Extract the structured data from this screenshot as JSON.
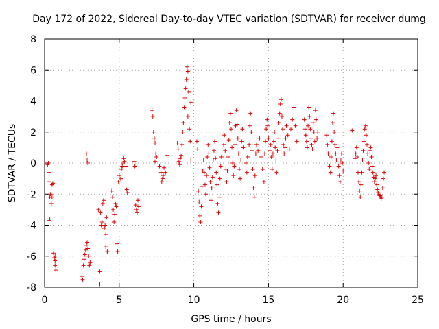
{
  "chart_data": {
    "type": "scatter",
    "title": "Day 172 of 2022, Sidereal Day-to-day VTEC variation (SDTVAR) for receiver dumg",
    "xlabel": "GPS time / hours",
    "ylabel": "SDTVAR / TECUs",
    "xlim": [
      0,
      25
    ],
    "ylim": [
      -8,
      8
    ],
    "xticks": [
      "0",
      "5",
      "10",
      "15",
      "20",
      "25"
    ],
    "yticks": [
      "-8",
      "-6",
      "-4",
      "-2",
      "0",
      "2",
      "4",
      "6",
      "8"
    ],
    "grid": true,
    "marker": "+",
    "color": "#e00000",
    "series": [
      {
        "name": "SDTVAR",
        "points": [
          [
            0.2,
            -0.1
          ],
          [
            0.25,
            0.0
          ],
          [
            0.3,
            -0.6
          ],
          [
            0.3,
            -1.2
          ],
          [
            0.35,
            -2.2
          ],
          [
            0.35,
            -3.6
          ],
          [
            0.3,
            -3.7
          ],
          [
            0.4,
            -2.0
          ],
          [
            0.45,
            -2.6
          ],
          [
            0.5,
            -1.4
          ],
          [
            0.5,
            -2.2
          ],
          [
            0.55,
            -1.3
          ],
          [
            0.6,
            -5.8
          ],
          [
            0.65,
            -6.1
          ],
          [
            0.7,
            -6.3
          ],
          [
            0.7,
            -6.6
          ],
          [
            0.75,
            -6.9
          ],
          [
            0.7,
            -6.0
          ],
          [
            2.5,
            -7.3
          ],
          [
            2.55,
            -7.5
          ],
          [
            2.6,
            -6.6
          ],
          [
            2.65,
            -6.2
          ],
          [
            2.7,
            -5.9
          ],
          [
            2.75,
            -5.6
          ],
          [
            2.8,
            -5.3
          ],
          [
            2.85,
            -5.1
          ],
          [
            2.9,
            -5.5
          ],
          [
            2.95,
            -6.0
          ],
          [
            2.8,
            0.6
          ],
          [
            2.85,
            0.2
          ],
          [
            2.9,
            0.0
          ],
          [
            3.0,
            -6.6
          ],
          [
            3.05,
            -6.4
          ],
          [
            3.6,
            -3.0
          ],
          [
            3.65,
            -3.6
          ],
          [
            3.7,
            -7.0
          ],
          [
            3.7,
            -7.8
          ],
          [
            3.75,
            -3.2
          ],
          [
            3.8,
            -4.0
          ],
          [
            3.85,
            -3.8
          ],
          [
            3.9,
            -2.6
          ],
          [
            3.95,
            -2.4
          ],
          [
            4.0,
            -4.2
          ],
          [
            4.05,
            -4.0
          ],
          [
            4.1,
            -5.4
          ],
          [
            4.1,
            -4.6
          ],
          [
            4.2,
            -5.7
          ],
          [
            4.15,
            -3.5
          ],
          [
            4.5,
            -1.8
          ],
          [
            4.55,
            -2.2
          ],
          [
            4.6,
            -3.0
          ],
          [
            4.65,
            -3.8
          ],
          [
            4.7,
            -3.3
          ],
          [
            4.75,
            -2.6
          ],
          [
            4.8,
            -2.8
          ],
          [
            4.85,
            -5.2
          ],
          [
            4.9,
            -5.7
          ],
          [
            4.95,
            -1.2
          ],
          [
            5.0,
            -0.8
          ],
          [
            5.1,
            -1.0
          ],
          [
            5.15,
            -0.4
          ],
          [
            5.2,
            -0.2
          ],
          [
            5.25,
            0.0
          ],
          [
            5.3,
            0.3
          ],
          [
            5.35,
            0.1
          ],
          [
            5.45,
            -0.2
          ],
          [
            5.5,
            -1.7
          ],
          [
            5.55,
            -1.9
          ],
          [
            6.0,
            0.1
          ],
          [
            6.05,
            -0.2
          ],
          [
            6.1,
            -2.7
          ],
          [
            6.15,
            -3.0
          ],
          [
            6.2,
            -3.2
          ],
          [
            6.25,
            -2.4
          ],
          [
            6.3,
            -2.8
          ],
          [
            7.2,
            3.4
          ],
          [
            7.25,
            3.0
          ],
          [
            7.3,
            2.0
          ],
          [
            7.35,
            1.6
          ],
          [
            7.4,
            1.3
          ],
          [
            7.45,
            0.6
          ],
          [
            7.5,
            0.4
          ],
          [
            7.4,
            0.1
          ],
          [
            7.7,
            -0.2
          ],
          [
            7.8,
            -0.6
          ],
          [
            7.85,
            -1.2
          ],
          [
            7.9,
            -1.0
          ],
          [
            7.95,
            -0.8
          ],
          [
            8.0,
            -0.3
          ],
          [
            8.1,
            -0.6
          ],
          [
            8.2,
            0.5
          ],
          [
            8.9,
            1.3
          ],
          [
            8.95,
            0.9
          ],
          [
            9.0,
            0.1
          ],
          [
            9.05,
            -0.1
          ],
          [
            9.1,
            0.3
          ],
          [
            9.15,
            0.5
          ],
          [
            9.2,
            1.2
          ],
          [
            9.25,
            2.0
          ],
          [
            9.3,
            2.6
          ],
          [
            9.35,
            3.6
          ],
          [
            9.4,
            4.2
          ],
          [
            9.45,
            4.8
          ],
          [
            9.5,
            5.4
          ],
          [
            9.55,
            6.2
          ],
          [
            9.6,
            5.9
          ],
          [
            9.65,
            4.6
          ],
          [
            9.6,
            3.0
          ],
          [
            9.7,
            2.2
          ],
          [
            9.75,
            1.4
          ],
          [
            9.8,
            0.2
          ],
          [
            9.8,
            3.9
          ],
          [
            10.2,
            1.4
          ],
          [
            10.25,
            0.9
          ],
          [
            10.3,
            -1.8
          ],
          [
            10.35,
            -2.5
          ],
          [
            10.4,
            -3.4
          ],
          [
            10.45,
            -3.8
          ],
          [
            10.5,
            -2.8
          ],
          [
            10.55,
            -1.5
          ],
          [
            10.6,
            -0.5
          ],
          [
            10.65,
            0.2
          ],
          [
            10.7,
            -0.6
          ],
          [
            10.75,
            -1.4
          ],
          [
            10.8,
            -2.0
          ],
          [
            10.85,
            -0.8
          ],
          [
            10.9,
            0.4
          ],
          [
            10.95,
            1.2
          ],
          [
            11.0,
            0.6
          ],
          [
            11.05,
            -0.3
          ],
          [
            11.1,
            -1.2
          ],
          [
            11.15,
            -2.4
          ],
          [
            11.2,
            -1.6
          ],
          [
            11.25,
            -0.9
          ],
          [
            11.3,
            0.2
          ],
          [
            11.35,
            0.8
          ],
          [
            11.4,
            1.4
          ],
          [
            11.45,
            0.3
          ],
          [
            11.5,
            -0.6
          ],
          [
            11.55,
            -1.4
          ],
          [
            11.6,
            -2.6
          ],
          [
            11.65,
            -3.2
          ],
          [
            11.7,
            -2.2
          ],
          [
            11.75,
            -1.0
          ],
          [
            11.8,
            -0.2
          ],
          [
            11.85,
            0.4
          ],
          [
            12.0,
            1.2
          ],
          [
            12.05,
            1.8
          ],
          [
            12.1,
            0.8
          ],
          [
            12.15,
            -0.4
          ],
          [
            12.2,
            -1.2
          ],
          [
            12.25,
            -0.5
          ],
          [
            12.3,
            0.4
          ],
          [
            12.35,
            1.5
          ],
          [
            12.4,
            2.6
          ],
          [
            12.45,
            3.2
          ],
          [
            12.5,
            2.2
          ],
          [
            12.55,
            1.0
          ],
          [
            12.6,
            0.0
          ],
          [
            12.65,
            -0.8
          ],
          [
            12.7,
            -0.2
          ],
          [
            12.75,
            1.2
          ],
          [
            12.8,
            2.4
          ],
          [
            12.85,
            3.4
          ],
          [
            12.9,
            2.5
          ],
          [
            12.95,
            1.6
          ],
          [
            13.0,
            0.6
          ],
          [
            13.05,
            -0.4
          ],
          [
            13.1,
            -1.0
          ],
          [
            13.15,
            0.2
          ],
          [
            13.2,
            1.4
          ],
          [
            13.25,
            2.2
          ],
          [
            13.3,
            1.0
          ],
          [
            13.5,
            0.0
          ],
          [
            13.55,
            -0.6
          ],
          [
            13.6,
            0.4
          ],
          [
            13.7,
            1.2
          ],
          [
            13.75,
            2.4
          ],
          [
            13.8,
            3.2
          ],
          [
            13.85,
            2.0
          ],
          [
            13.9,
            0.8
          ],
          [
            13.95,
            -0.4
          ],
          [
            14.0,
            -1.6
          ],
          [
            14.05,
            -2.2
          ],
          [
            14.1,
            -0.8
          ],
          [
            14.15,
            0.6
          ],
          [
            14.2,
            1.2
          ],
          [
            14.3,
            0.8
          ],
          [
            14.4,
            1.6
          ],
          [
            14.5,
            0.4
          ],
          [
            14.6,
            -0.4
          ],
          [
            14.7,
            -1.2
          ],
          [
            14.75,
            0.6
          ],
          [
            14.8,
            1.4
          ],
          [
            14.85,
            2.2
          ],
          [
            14.9,
            2.8
          ],
          [
            14.95,
            2.4
          ],
          [
            15.0,
            1.6
          ],
          [
            15.1,
            0.8
          ],
          [
            15.15,
            1.2
          ],
          [
            15.2,
            0.4
          ],
          [
            15.25,
            -0.4
          ],
          [
            15.3,
            0.6
          ],
          [
            15.35,
            1.4
          ],
          [
            15.4,
            2.0
          ],
          [
            15.45,
            1.0
          ],
          [
            15.5,
            0.2
          ],
          [
            15.55,
            -0.6
          ],
          [
            15.6,
            0.8
          ],
          [
            15.65,
            1.6
          ],
          [
            15.7,
            2.6
          ],
          [
            15.75,
            3.2
          ],
          [
            15.8,
            3.8
          ],
          [
            15.85,
            4.1
          ],
          [
            15.9,
            3.0
          ],
          [
            15.95,
            2.2
          ],
          [
            16.0,
            1.2
          ],
          [
            16.05,
            0.6
          ],
          [
            16.1,
            1.0
          ],
          [
            16.15,
            1.6
          ],
          [
            16.2,
            2.4
          ],
          [
            16.3,
            1.8
          ],
          [
            16.4,
            0.9
          ],
          [
            16.5,
            2.2
          ],
          [
            16.6,
            2.8
          ],
          [
            16.7,
            3.6
          ],
          [
            16.8,
            2.4
          ],
          [
            16.9,
            1.4
          ],
          [
            17.4,
            2.8
          ],
          [
            17.45,
            2.2
          ],
          [
            17.5,
            1.8
          ],
          [
            17.55,
            1.4
          ],
          [
            17.6,
            1.0
          ],
          [
            17.65,
            2.4
          ],
          [
            17.7,
            3.6
          ],
          [
            17.75,
            3.0
          ],
          [
            17.8,
            2.2
          ],
          [
            17.85,
            1.6
          ],
          [
            17.9,
            1.2
          ],
          [
            17.95,
            0.9
          ],
          [
            18.0,
            2.6
          ],
          [
            18.05,
            2.0
          ],
          [
            18.1,
            1.4
          ],
          [
            18.15,
            3.4
          ],
          [
            18.2,
            2.8
          ],
          [
            18.25,
            1.6
          ],
          [
            18.3,
            2.0
          ],
          [
            18.9,
            1.8
          ],
          [
            18.95,
            1.2
          ],
          [
            19.0,
            0.6
          ],
          [
            19.05,
            0.2
          ],
          [
            19.1,
            -0.2
          ],
          [
            19.15,
            -0.6
          ],
          [
            19.2,
            0.4
          ],
          [
            19.25,
            1.4
          ],
          [
            19.3,
            2.6
          ],
          [
            19.35,
            3.2
          ],
          [
            19.4,
            2.0
          ],
          [
            19.45,
            1.2
          ],
          [
            19.5,
            0.6
          ],
          [
            19.55,
            0.2
          ],
          [
            19.6,
            1.0
          ],
          [
            19.7,
            -0.2
          ],
          [
            19.75,
            -0.8
          ],
          [
            19.8,
            -1.2
          ],
          [
            19.85,
            0.2
          ],
          [
            19.9,
            0.6
          ],
          [
            19.95,
            0.0
          ],
          [
            20.0,
            -0.5
          ],
          [
            20.6,
            2.1
          ],
          [
            20.8,
            0.3
          ],
          [
            20.85,
            0.6
          ],
          [
            20.9,
            1.0
          ],
          [
            20.95,
            0.4
          ],
          [
            21.0,
            -0.6
          ],
          [
            21.05,
            -1.2
          ],
          [
            21.1,
            -1.8
          ],
          [
            21.15,
            -2.2
          ],
          [
            21.2,
            -1.4
          ],
          [
            21.25,
            -0.6
          ],
          [
            21.3,
            0.2
          ],
          [
            21.35,
            0.8
          ],
          [
            21.4,
            1.4
          ],
          [
            21.45,
            2.2
          ],
          [
            21.5,
            2.4
          ],
          [
            21.55,
            1.8
          ],
          [
            21.6,
            1.2
          ],
          [
            21.65,
            0.6
          ],
          [
            21.7,
            0.0
          ],
          [
            21.75,
            -0.4
          ],
          [
            21.8,
            0.8
          ],
          [
            21.85,
            1.0
          ],
          [
            21.9,
            0.4
          ],
          [
            21.95,
            -0.2
          ],
          [
            22.0,
            -0.6
          ],
          [
            22.05,
            -0.9
          ],
          [
            22.1,
            -1.2
          ],
          [
            22.15,
            -1.0
          ],
          [
            22.2,
            -0.8
          ],
          [
            22.25,
            -1.4
          ],
          [
            22.3,
            -1.7
          ],
          [
            22.35,
            -1.9
          ],
          [
            22.4,
            -2.0
          ],
          [
            22.45,
            -2.1
          ],
          [
            22.5,
            -2.2
          ],
          [
            22.55,
            -2.3
          ],
          [
            22.6,
            -2.2
          ],
          [
            22.65,
            -1.6
          ],
          [
            22.7,
            -1.0
          ],
          [
            22.75,
            -0.6
          ]
        ]
      }
    ]
  }
}
